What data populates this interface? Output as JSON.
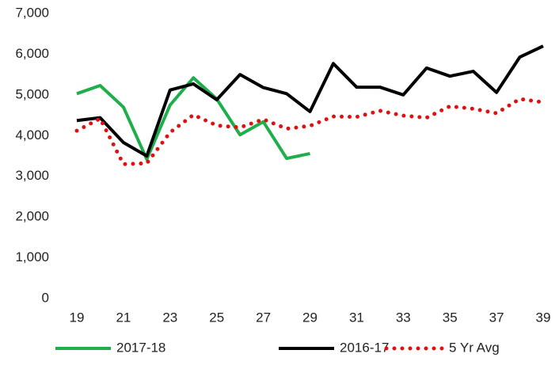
{
  "chart_data": {
    "type": "line",
    "x": [
      19,
      20,
      21,
      22,
      23,
      24,
      25,
      26,
      27,
      28,
      29,
      30,
      31,
      32,
      33,
      34,
      35,
      36,
      37,
      38,
      39
    ],
    "xlim": [
      19,
      39
    ],
    "xticks": [
      19,
      21,
      23,
      25,
      27,
      29,
      31,
      33,
      35,
      37,
      39
    ],
    "ylim": [
      0,
      7000
    ],
    "yticks": [
      0,
      {
        "value": 1000,
        "label": "1,000"
      },
      {
        "value": 2000,
        "label": "2,000"
      },
      {
        "value": 3000,
        "label": "3,000"
      },
      {
        "value": 4000,
        "label": "4,000"
      },
      {
        "value": 5000,
        "label": "5,000"
      },
      {
        "value": 6000,
        "label": "6,000"
      },
      {
        "value": 7000,
        "label": "7,000"
      }
    ],
    "grid": false,
    "legend": "bottom",
    "series": [
      {
        "name": "2017-18",
        "color": "#1fae4b",
        "style": "solid",
        "values": [
          5030,
          5230,
          4700,
          3420,
          4750,
          5420,
          4900,
          4020,
          4340,
          3440,
          3560,
          null,
          null,
          null,
          null,
          null,
          null,
          null,
          null,
          null,
          null
        ]
      },
      {
        "name": "2016-17",
        "color": "#000000",
        "style": "solid",
        "values": [
          4370,
          4440,
          3830,
          3500,
          5120,
          5270,
          4880,
          5500,
          5180,
          5030,
          4590,
          5770,
          5190,
          5190,
          5000,
          5660,
          5460,
          5580,
          5060,
          5930,
          6200
        ]
      },
      {
        "name": "5 Yr Avg",
        "color": "#e01010",
        "style": "dotted",
        "values": [
          4120,
          4420,
          3300,
          3320,
          4080,
          4510,
          4250,
          4200,
          4400,
          4170,
          4240,
          4470,
          4460,
          4610,
          4490,
          4440,
          4720,
          4660,
          4550,
          4900,
          4820
        ]
      }
    ]
  }
}
